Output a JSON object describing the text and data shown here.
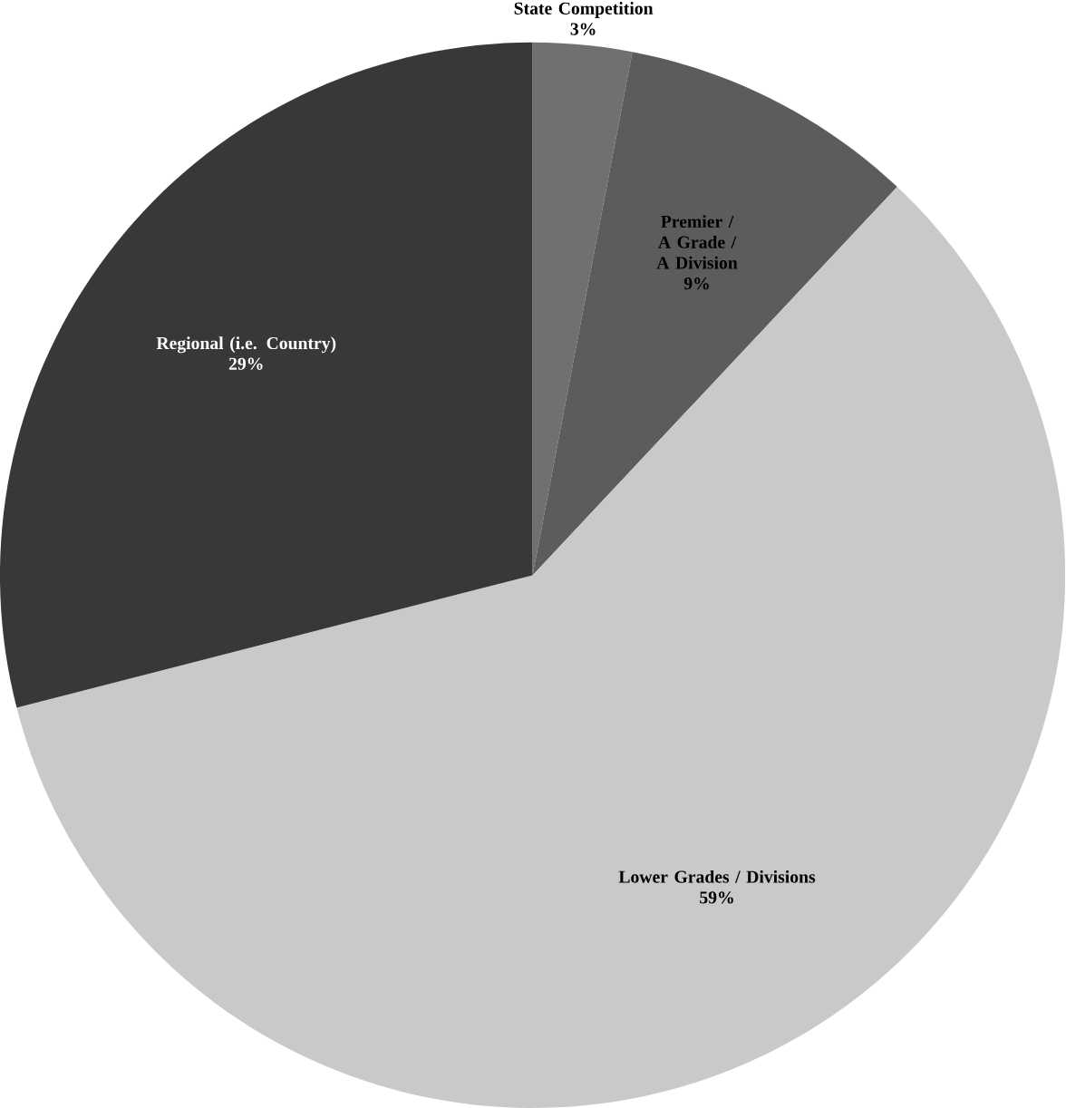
{
  "chart_data": {
    "type": "pie",
    "categories": [
      "State Competition",
      "Premier / A Grade / A Division",
      "Lower Grades / Divisions",
      "Regional (i.e. Country)"
    ],
    "values": [
      3,
      9,
      59,
      29
    ],
    "value_labels": [
      "3%",
      "9%",
      "59%",
      "29%"
    ],
    "colors": [
      "#707070",
      "#5c5c5c",
      "#c9c9c9",
      "#383838"
    ]
  }
}
